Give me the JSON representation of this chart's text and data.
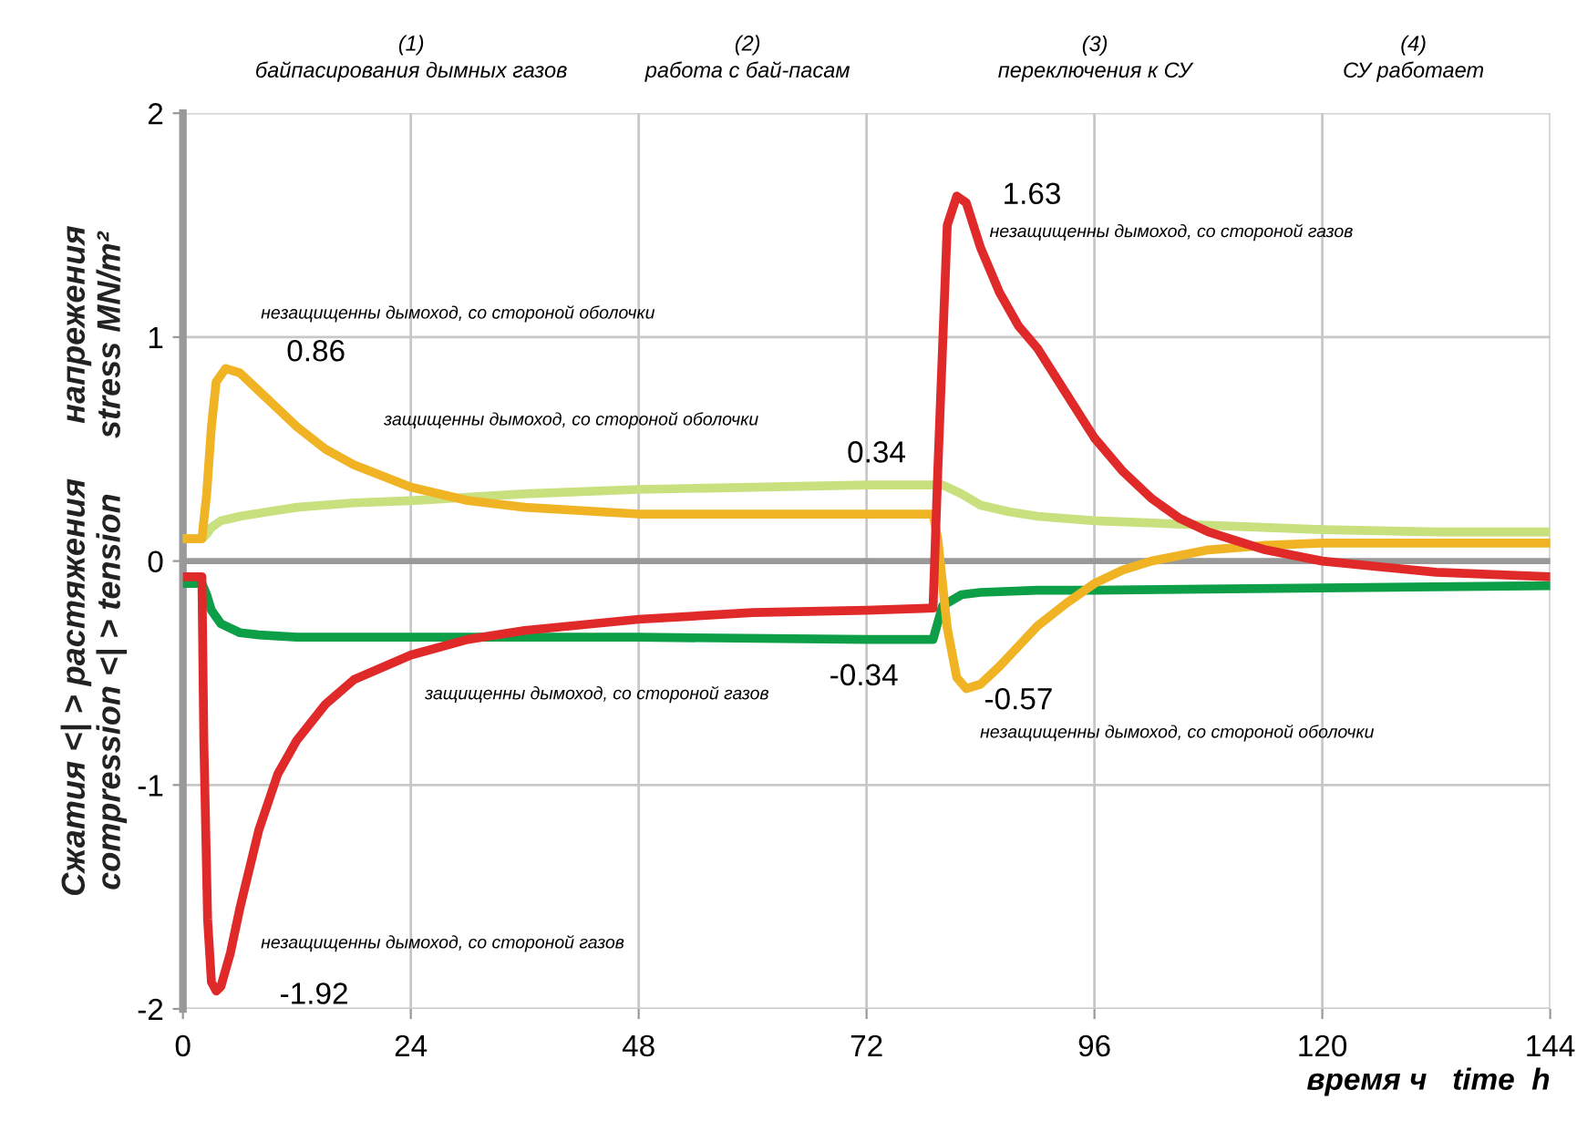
{
  "chart_data": {
    "type": "line",
    "xlabel": "время ч   time  h",
    "ylabel": "Сжатия <| > растяжения      напрежения\ncompression <| > tension      stress MN/m²",
    "xlim": [
      0,
      144
    ],
    "xticks": [
      0,
      24,
      48,
      72,
      96,
      120,
      144
    ],
    "ylim": [
      -2,
      2
    ],
    "yticks": [
      -2,
      -1,
      0,
      1,
      2
    ],
    "grid": true,
    "legend": false,
    "marker": "none",
    "line_style": "solid",
    "ref_lines": [
      {
        "axis": "y",
        "value": 0,
        "label": null,
        "color": "#999999"
      }
    ],
    "series": [
      {
        "color": "#c9e07e",
        "x": [
          0,
          2,
          2.5,
          3,
          4,
          6,
          9,
          12,
          18,
          24,
          36,
          48,
          60,
          72,
          79,
          80,
          82,
          84,
          87,
          90,
          96,
          108,
          120,
          132,
          144
        ],
        "values": [
          0.1,
          0.1,
          0.12,
          0.15,
          0.18,
          0.2,
          0.22,
          0.24,
          0.26,
          0.27,
          0.3,
          0.32,
          0.33,
          0.34,
          0.34,
          0.34,
          0.3,
          0.25,
          0.22,
          0.2,
          0.18,
          0.16,
          0.14,
          0.13,
          0.13
        ]
      },
      {
        "color": "#0d9e48",
        "x": [
          0,
          2,
          2.5,
          3,
          4,
          6,
          8,
          12,
          24,
          48,
          72,
          79,
          80,
          82,
          84,
          90,
          96,
          120,
          144
        ],
        "values": [
          -0.1,
          -0.1,
          -0.15,
          -0.22,
          -0.28,
          -0.32,
          -0.33,
          -0.34,
          -0.34,
          -0.34,
          -0.35,
          -0.35,
          -0.2,
          -0.15,
          -0.14,
          -0.13,
          -0.13,
          -0.12,
          -0.11
        ]
      },
      {
        "color": "#f0b323",
        "x": [
          0,
          2,
          2.5,
          3,
          3.5,
          4.5,
          6,
          8,
          10,
          12,
          15,
          18,
          24,
          30,
          36,
          48,
          60,
          72,
          79,
          79.5,
          80.5,
          81.5,
          82.5,
          84,
          86,
          88,
          90,
          93,
          96,
          99,
          102,
          108,
          114,
          120,
          132,
          144
        ],
        "values": [
          0.1,
          0.1,
          0.3,
          0.6,
          0.8,
          0.86,
          0.84,
          0.76,
          0.68,
          0.6,
          0.5,
          0.43,
          0.33,
          0.27,
          0.24,
          0.21,
          0.21,
          0.21,
          0.21,
          0.1,
          -0.3,
          -0.52,
          -0.57,
          -0.55,
          -0.47,
          -0.38,
          -0.29,
          -0.19,
          -0.1,
          -0.04,
          0.0,
          0.05,
          0.07,
          0.08,
          0.08,
          0.08
        ]
      },
      {
        "color": "#e02a2a",
        "x": [
          0,
          2,
          2.2,
          2.6,
          3,
          3.5,
          4,
          5,
          6,
          8,
          10,
          12,
          15,
          18,
          24,
          30,
          36,
          48,
          60,
          72,
          79,
          79.5,
          80.5,
          81.5,
          82.5,
          84,
          86,
          88,
          90,
          93,
          96,
          99,
          102,
          105,
          108,
          114,
          120,
          132,
          144
        ],
        "values": [
          -0.07,
          -0.07,
          -0.8,
          -1.6,
          -1.88,
          -1.92,
          -1.9,
          -1.75,
          -1.55,
          -1.2,
          -0.95,
          -0.8,
          -0.64,
          -0.53,
          -0.42,
          -0.35,
          -0.31,
          -0.26,
          -0.23,
          -0.22,
          -0.21,
          0.4,
          1.5,
          1.63,
          1.6,
          1.4,
          1.2,
          1.05,
          0.95,
          0.75,
          0.55,
          0.4,
          0.28,
          0.19,
          0.13,
          0.05,
          0.0,
          -0.05,
          -0.07
        ]
      }
    ],
    "annotations": [
      "(1)\nбайпасирования дымных газов",
      "(2)\nработа с бай-пасам",
      "(3)\nпереключения к СУ",
      "(4)\nСУ работает",
      {
        "text": "0.86",
        "x": 4.5,
        "y": 0.86
      },
      {
        "text": "1.63",
        "x": 81.5,
        "y": 1.63
      },
      {
        "text": "0.34",
        "x": 79,
        "y": 0.34
      },
      {
        "text": "-0.34",
        "x": 79,
        "y": -0.35
      },
      {
        "text": "-0.57",
        "x": 82.5,
        "y": -0.57
      },
      {
        "text": "-1.92",
        "x": 3.5,
        "y": -1.92
      },
      "незащищенны дымоход, со стороной оболочки",
      "незащищенны дымоход, со стороной газов",
      "защищенны дымоход, со стороной оболочки",
      "защищенны дымоход, со стороной газов",
      "незащищенны дымоход, со стороной оболочки",
      "незащищенны дымоход, со стороной газов"
    ]
  }
}
